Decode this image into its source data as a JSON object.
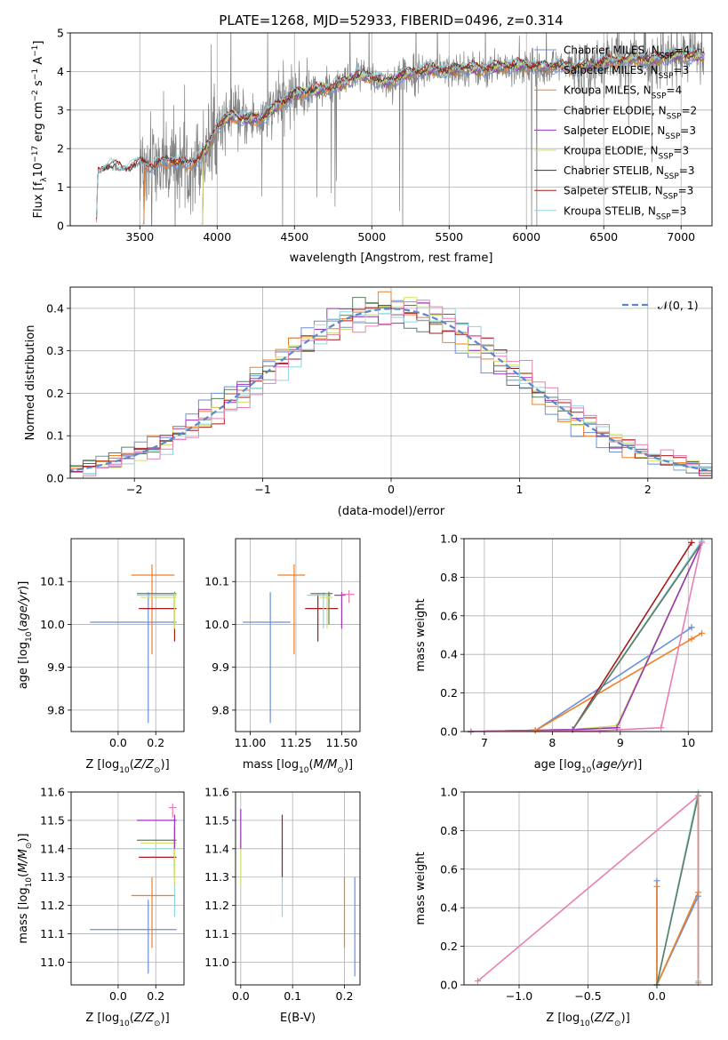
{
  "figure_title": "PLATE=1268, MJD=52933, FIBERID=0496, z=0.314",
  "colors": {
    "Chabrier MILES": "#6b8fd9",
    "Salpeter MILES": "#8a8a8a",
    "Kroupa MILES": "#f07f25",
    "Chabrier ELODIE": "#5b7e63",
    "Salpeter ELODIE": "#9c34b8",
    "Kroupa ELODIE": "#cfe16b",
    "Chabrier STELIB": "#333333",
    "Salpeter STELIB": "#a81a1a",
    "Kroupa STELIB": "#8fd6e0",
    "pink": "#e87fb4",
    "dashed": "#5b87cf"
  },
  "chart_data": [
    {
      "id": "spectrum",
      "type": "line",
      "xlabel": "wavelength [Angstrom, rest frame]",
      "ylabel": "Flux [f",
      "xlim": [
        3050,
        7200
      ],
      "ylim": [
        0,
        5
      ],
      "xticks": [
        3500,
        4000,
        4500,
        5000,
        5500,
        6000,
        6500,
        7000
      ],
      "yticks": [
        0,
        1,
        2,
        3,
        4,
        5
      ],
      "legend_position": "top-right",
      "legend": [
        {
          "label": "Chabrier MILES, N",
          "n": "4"
        },
        {
          "label": "Salpeter MILES, N",
          "n": "3"
        },
        {
          "label": "Kroupa MILES, N",
          "n": "4"
        },
        {
          "label": "Chabrier ELODIE, N",
          "n": "2"
        },
        {
          "label": "Salpeter ELODIE, N",
          "n": "3"
        },
        {
          "label": "Kroupa ELODIE, N",
          "n": "3"
        },
        {
          "label": "Chabrier STELIB, N",
          "n": "3"
        },
        {
          "label": "Salpeter STELIB, N",
          "n": "3"
        },
        {
          "label": "Kroupa STELIB, N",
          "n": "3"
        }
      ],
      "continuum": [
        [
          3220,
          0.1
        ],
        [
          3230,
          1.4
        ],
        [
          3300,
          1.55
        ],
        [
          3400,
          1.45
        ],
        [
          3500,
          1.6
        ],
        [
          3600,
          1.55
        ],
        [
          3700,
          1.7
        ],
        [
          3800,
          1.55
        ],
        [
          3900,
          1.8
        ],
        [
          3950,
          2.1
        ],
        [
          4000,
          2.6
        ],
        [
          4100,
          2.85
        ],
        [
          4200,
          2.75
        ],
        [
          4300,
          2.8
        ],
        [
          4400,
          3.15
        ],
        [
          4500,
          3.4
        ],
        [
          4600,
          3.5
        ],
        [
          4700,
          3.55
        ],
        [
          4800,
          3.65
        ],
        [
          4900,
          3.9
        ],
        [
          5000,
          3.85
        ],
        [
          5100,
          3.7
        ],
        [
          5200,
          3.9
        ],
        [
          5300,
          4.0
        ],
        [
          5400,
          4.05
        ],
        [
          5500,
          4.0
        ],
        [
          5600,
          4.1
        ],
        [
          5700,
          4.05
        ],
        [
          5800,
          4.1
        ],
        [
          5900,
          4.15
        ],
        [
          6000,
          4.15
        ],
        [
          6100,
          4.1
        ],
        [
          6200,
          4.15
        ],
        [
          6300,
          4.1
        ],
        [
          6400,
          4.15
        ],
        [
          6500,
          4.25
        ],
        [
          6600,
          4.3
        ],
        [
          6700,
          4.35
        ],
        [
          6800,
          4.3
        ],
        [
          6900,
          4.4
        ],
        [
          7000,
          4.4
        ],
        [
          7100,
          4.4
        ]
      ]
    },
    {
      "id": "residuals",
      "type": "bar",
      "xlabel": "(data-model)/error",
      "ylabel": "Normed distribution",
      "xlim": [
        -2.5,
        2.5
      ],
      "ylim": [
        0,
        0.45
      ],
      "xticks": [
        -2,
        -1,
        0,
        1,
        2
      ],
      "yticks": [
        0.0,
        0.1,
        0.2,
        0.3,
        0.4
      ],
      "legend_position": "top-right",
      "legend_label": "(0, 1)",
      "bin_width": 0.1
    },
    {
      "id": "age_vs_Z",
      "type": "scatter",
      "xlabel": "Z [log",
      "ylabel": "age  [log",
      "xlim": [
        -0.25,
        0.35
      ],
      "ylim": [
        9.75,
        10.2
      ],
      "xticks": [
        0.0,
        0.2
      ],
      "yticks": [
        9.8,
        9.9,
        10.0,
        10.1
      ],
      "points": [
        {
          "c": "Chabrier MILES",
          "x": 0.16,
          "xlo": -0.15,
          "xhi": 0.31,
          "y": 10.005,
          "ylo": 9.77,
          "yhi": 10.075
        },
        {
          "c": "Kroupa MILES",
          "x": 0.18,
          "xlo": 0.07,
          "xhi": 0.3,
          "y": 10.115,
          "ylo": 9.93,
          "yhi": 10.14
        },
        {
          "c": "Salpeter STELIB",
          "x": 0.3,
          "xlo": 0.11,
          "xhi": 0.31,
          "y": 10.037,
          "ylo": 9.96,
          "yhi": 10.07
        },
        {
          "c": "Kroupa STELIB",
          "x": 0.3,
          "xlo": 0.1,
          "xhi": 0.31,
          "y": 10.068,
          "ylo": 9.99,
          "yhi": 10.075
        },
        {
          "c": "Chabrier ELODIE",
          "x": 0.3,
          "xlo": 0.1,
          "xhi": 0.31,
          "y": 10.072,
          "ylo": 10.0,
          "yhi": 10.076
        },
        {
          "c": "Kroupa ELODIE",
          "x": 0.3,
          "xlo": 0.12,
          "xhi": 0.31,
          "y": 10.063,
          "ylo": 9.99,
          "yhi": 10.073
        }
      ]
    },
    {
      "id": "age_vs_mass",
      "type": "scatter",
      "xlabel": "mass [log",
      "ylabel": "",
      "xlim": [
        10.92,
        11.6
      ],
      "ylim": [
        9.75,
        10.2
      ],
      "xticks": [
        11.0,
        11.25,
        11.5
      ],
      "yticks": [
        9.8,
        9.9,
        10.0,
        10.1
      ],
      "points": [
        {
          "c": "Chabrier MILES",
          "x": 11.11,
          "xlo": 10.96,
          "xhi": 11.22,
          "y": 10.005,
          "ylo": 9.77,
          "yhi": 10.075
        },
        {
          "c": "Kroupa MILES",
          "x": 11.24,
          "xlo": 11.15,
          "xhi": 11.3,
          "y": 10.115,
          "ylo": 9.93,
          "yhi": 10.14
        },
        {
          "c": "Salpeter STELIB",
          "x": 11.37,
          "xlo": 11.3,
          "xhi": 11.48,
          "y": 10.037,
          "ylo": 9.96,
          "yhi": 10.07
        },
        {
          "c": "Kroupa STELIB",
          "x": 11.4,
          "xlo": 11.31,
          "xhi": 11.44,
          "y": 10.068,
          "ylo": 9.99,
          "yhi": 10.075
        },
        {
          "c": "Chabrier ELODIE",
          "x": 11.43,
          "xlo": 11.33,
          "xhi": 11.45,
          "y": 10.072,
          "ylo": 10.0,
          "yhi": 10.076
        },
        {
          "c": "Kroupa ELODIE",
          "x": 11.42,
          "xlo": 11.38,
          "xhi": 11.45,
          "y": 10.063,
          "ylo": 9.99,
          "yhi": 10.073
        },
        {
          "c": "Salpeter ELODIE",
          "x": 11.5,
          "xlo": 11.46,
          "xhi": 11.52,
          "y": 10.068,
          "ylo": 9.99,
          "yhi": 10.075
        },
        {
          "c": "pink",
          "x": 11.54,
          "xlo": 11.5,
          "xhi": 11.57,
          "y": 10.07,
          "ylo": 10.05,
          "yhi": 10.08
        }
      ]
    },
    {
      "id": "weight_vs_age",
      "type": "line",
      "xlabel": "age  [log",
      "ylabel": "mass weight",
      "xlim": [
        6.7,
        10.35
      ],
      "ylim": [
        0,
        1
      ],
      "xticks": [
        7,
        8,
        9,
        10
      ],
      "yticks": [
        0.0,
        0.2,
        0.4,
        0.6,
        0.8,
        1.0
      ],
      "series": [
        {
          "c": "Chabrier MILES",
          "x": [
            6.8,
            7.75,
            10.05,
            10.05
          ],
          "y": [
            0.0,
            0.005,
            0.54,
            0.54
          ]
        },
        {
          "c": "Kroupa MILES",
          "x": [
            6.8,
            7.75,
            10.05,
            10.2
          ],
          "y": [
            0.0,
            0.005,
            0.48,
            0.51
          ]
        },
        {
          "c": "Salpeter STELIB",
          "x": [
            6.8,
            8.3,
            10.05
          ],
          "y": [
            0.0,
            0.01,
            0.98
          ]
        },
        {
          "c": "Kroupa STELIB",
          "x": [
            6.8,
            8.3,
            10.2
          ],
          "y": [
            0.0,
            0.01,
            0.99
          ]
        },
        {
          "c": "Chabrier ELODIE",
          "x": [
            6.8,
            8.3,
            10.2
          ],
          "y": [
            0.0,
            0.01,
            0.98
          ]
        },
        {
          "c": "Kroupa ELODIE",
          "x": [
            6.8,
            8.3,
            8.95,
            10.2
          ],
          "y": [
            0.0,
            0.01,
            0.03,
            0.98
          ]
        },
        {
          "c": "Salpeter ELODIE",
          "x": [
            6.8,
            8.3,
            8.95,
            10.2
          ],
          "y": [
            0.0,
            0.01,
            0.02,
            0.98
          ]
        },
        {
          "c": "pink",
          "x": [
            6.8,
            8.7,
            9.6,
            10.2
          ],
          "y": [
            0.0,
            0.005,
            0.02,
            0.98
          ]
        }
      ]
    },
    {
      "id": "mass_vs_Z",
      "type": "scatter",
      "xlabel": "Z [log",
      "ylabel": "mass [log",
      "xlim": [
        -0.25,
        0.35
      ],
      "ylim": [
        10.92,
        11.6
      ],
      "xticks": [
        0.0,
        0.2
      ],
      "yticks": [
        11.0,
        11.1,
        11.2,
        11.3,
        11.4,
        11.5,
        11.6
      ],
      "points": [
        {
          "c": "Chabrier MILES",
          "x": 0.16,
          "xlo": -0.15,
          "xhi": 0.31,
          "y": 11.115,
          "ylo": 10.96,
          "yhi": 11.22
        },
        {
          "c": "Kroupa MILES",
          "x": 0.18,
          "xlo": 0.07,
          "xhi": 0.3,
          "y": 11.235,
          "ylo": 11.05,
          "yhi": 11.3
        },
        {
          "c": "Salpeter STELIB",
          "x": 0.3,
          "xlo": 0.11,
          "xhi": 0.31,
          "y": 11.37,
          "ylo": 11.3,
          "yhi": 11.48
        },
        {
          "c": "Kroupa STELIB",
          "x": 0.3,
          "xlo": 0.1,
          "xhi": 0.31,
          "y": 11.4,
          "ylo": 11.16,
          "yhi": 11.43
        },
        {
          "c": "Chabrier ELODIE",
          "x": 0.3,
          "xlo": 0.1,
          "xhi": 0.31,
          "y": 11.43,
          "ylo": 11.33,
          "yhi": 11.45
        },
        {
          "c": "Kroupa ELODIE",
          "x": 0.3,
          "xlo": 0.12,
          "xhi": 0.31,
          "y": 11.42,
          "ylo": 11.27,
          "yhi": 11.45
        },
        {
          "c": "Salpeter ELODIE",
          "x": 0.3,
          "xlo": 0.1,
          "xhi": 0.31,
          "y": 11.5,
          "ylo": 11.4,
          "yhi": 11.52
        },
        {
          "c": "pink",
          "x": 0.29,
          "xlo": 0.27,
          "xhi": 0.31,
          "y": 11.545,
          "ylo": 11.51,
          "yhi": 11.56
        }
      ]
    },
    {
      "id": "mass_vs_ebv",
      "type": "scatter",
      "xlabel": "E(B-V)",
      "ylabel": "",
      "xlim": [
        -0.01,
        0.23
      ],
      "ylim": [
        10.92,
        11.6
      ],
      "xticks": [
        0.0,
        0.1,
        0.2
      ],
      "yticks": [
        11.0,
        11.1,
        11.2,
        11.3,
        11.4,
        11.5,
        11.6
      ],
      "points": [
        {
          "c": "Kroupa ELODIE",
          "x": 0.0,
          "y": 11.35,
          "ylo": 11.27,
          "yhi": 11.45
        },
        {
          "c": "Salpeter ELODIE",
          "x": 0.0,
          "y": 11.5,
          "ylo": 11.4,
          "yhi": 11.54
        },
        {
          "c": "Kroupa STELIB",
          "x": 0.08,
          "y": 11.3,
          "ylo": 11.16,
          "yhi": 11.43
        },
        {
          "c": "Salpeter STELIB",
          "x": 0.08,
          "y": 11.45,
          "ylo": 11.3,
          "yhi": 11.52
        },
        {
          "c": "Kroupa MILES",
          "x": 0.2,
          "y": 11.2,
          "ylo": 11.05,
          "yhi": 11.3
        },
        {
          "c": "Chabrier MILES",
          "x": 0.22,
          "y": 11.1,
          "ylo": 10.95,
          "yhi": 11.3
        }
      ]
    },
    {
      "id": "weight_vs_Z",
      "type": "line",
      "xlabel": "Z [log",
      "ylabel": "mass weight",
      "xlim": [
        -1.4,
        0.4
      ],
      "ylim": [
        0,
        1
      ],
      "xticks": [
        -1.0,
        -0.5,
        0.0
      ],
      "yticks": [
        0.0,
        0.2,
        0.4,
        0.6,
        0.8,
        1.0
      ],
      "series": [
        {
          "c": "Chabrier MILES",
          "x": [
            0.0,
            0.0,
            0.3,
            0.3
          ],
          "y": [
            0.54,
            0.0,
            0.46,
            0.98
          ]
        },
        {
          "c": "Kroupa MILES",
          "x": [
            0.0,
            0.0,
            0.3,
            0.3
          ],
          "y": [
            0.51,
            0.0,
            0.48,
            0.98
          ]
        },
        {
          "c": "Kroupa STELIB",
          "x": [
            0.0,
            0.3,
            0.3
          ],
          "y": [
            0.0,
            1.0,
            0.02
          ]
        },
        {
          "c": "Chabrier ELODIE",
          "x": [
            0.0,
            0.3,
            0.3
          ],
          "y": [
            0.0,
            0.98,
            0.02
          ]
        },
        {
          "c": "Kroupa ELODIE",
          "x": [
            0.3,
            0.3
          ],
          "y": [
            0.02,
            0.98
          ]
        },
        {
          "c": "pink",
          "x": [
            -1.3,
            0.3,
            0.3
          ],
          "y": [
            0.02,
            0.98,
            0.01
          ]
        }
      ]
    }
  ]
}
